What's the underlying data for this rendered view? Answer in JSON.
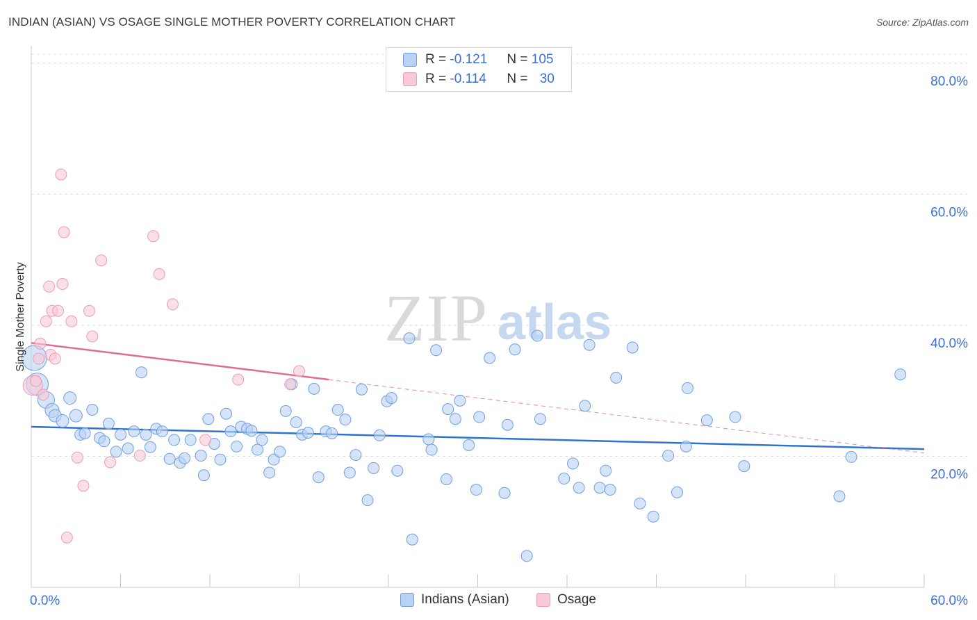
{
  "title": "INDIAN (ASIAN) VS OSAGE SINGLE MOTHER POVERTY CORRELATION CHART",
  "source": "Source: ZipAtlas.com",
  "watermark": {
    "zip": "ZIP",
    "atlas": "atlas"
  },
  "legend": {
    "series1": {
      "r_label": "R =",
      "r_value": "-0.121",
      "n_label": "N =",
      "n_value": "105"
    },
    "series2": {
      "r_label": "R =",
      "r_value": "-0.114",
      "n_label": "N =",
      "n_value": "30"
    }
  },
  "chart_data": {
    "type": "scatter",
    "title": "INDIAN (ASIAN) VS OSAGE SINGLE MOTHER POVERTY CORRELATION CHART",
    "xlabel": "",
    "ylabel": "Single Mother Poverty",
    "xlim": [
      0,
      60
    ],
    "ylim": [
      0,
      82
    ],
    "x_tick_labels": [
      "0.0%",
      "60.0%"
    ],
    "y_ticks": [
      20,
      40,
      60,
      80
    ],
    "y_tick_labels": [
      "20.0%",
      "40.0%",
      "60.0%",
      "80.0%"
    ],
    "series": [
      {
        "name": "Indians (Asian)",
        "color": "#6f9fe0",
        "fill": "#b9d2f3",
        "trend": {
          "x": [
            0,
            60
          ],
          "y": [
            24.5,
            21.1
          ],
          "color": "#2f73d0"
        },
        "points": [
          [
            0.2,
            35,
            18
          ],
          [
            0.4,
            31,
            16
          ],
          [
            1.0,
            28.6,
            12
          ],
          [
            1.4,
            27,
            10
          ],
          [
            1.6,
            26.2,
            9
          ],
          [
            2.1,
            25.4,
            9
          ],
          [
            2.6,
            28.9,
            9
          ],
          [
            3.0,
            26.2,
            9
          ],
          [
            3.3,
            23.3,
            8
          ],
          [
            3.6,
            23.5,
            8
          ],
          [
            4.1,
            27.1,
            8
          ],
          [
            4.6,
            22.8,
            8
          ],
          [
            4.9,
            22.3,
            8
          ],
          [
            5.2,
            25,
            8
          ],
          [
            5.7,
            20.7,
            8
          ],
          [
            6.0,
            23.3,
            8
          ],
          [
            6.5,
            21.2,
            8
          ],
          [
            6.9,
            23.8,
            8
          ],
          [
            7.4,
            32.8,
            8
          ],
          [
            7.7,
            23.3,
            8
          ],
          [
            8.0,
            21.4,
            8
          ],
          [
            8.4,
            24.2,
            8
          ],
          [
            8.8,
            23.8,
            8
          ],
          [
            9.3,
            19.6,
            8
          ],
          [
            9.6,
            22.5,
            8
          ],
          [
            10.0,
            19.0,
            8
          ],
          [
            10.3,
            19.7,
            8
          ],
          [
            10.7,
            22.5,
            8
          ],
          [
            11.4,
            20.1,
            8
          ],
          [
            11.6,
            17.1,
            8
          ],
          [
            11.9,
            25.7,
            8
          ],
          [
            12.3,
            21.9,
            8
          ],
          [
            12.7,
            19.5,
            8
          ],
          [
            13.1,
            26.5,
            8
          ],
          [
            13.4,
            23.8,
            8
          ],
          [
            13.8,
            21.5,
            8
          ],
          [
            14.1,
            24.5,
            8
          ],
          [
            14.5,
            24.2,
            8
          ],
          [
            14.8,
            23.9,
            8
          ],
          [
            15.2,
            21.0,
            8
          ],
          [
            15.5,
            22.5,
            8
          ],
          [
            16.0,
            17.5,
            8
          ],
          [
            16.3,
            19.5,
            8
          ],
          [
            16.7,
            20.7,
            8
          ],
          [
            17.1,
            26.9,
            8
          ],
          [
            17.5,
            31.0,
            8
          ],
          [
            17.8,
            25.2,
            8
          ],
          [
            18.2,
            23.3,
            8
          ],
          [
            18.6,
            23.6,
            8
          ],
          [
            19.0,
            30.3,
            8
          ],
          [
            19.3,
            16.8,
            8
          ],
          [
            19.8,
            23.8,
            8
          ],
          [
            20.2,
            23.5,
            8
          ],
          [
            20.6,
            27.1,
            8
          ],
          [
            21.1,
            25.6,
            8
          ],
          [
            21.4,
            17.5,
            8
          ],
          [
            21.8,
            20.2,
            8
          ],
          [
            22.2,
            30.2,
            8
          ],
          [
            22.6,
            13.3,
            8
          ],
          [
            23.0,
            18.2,
            8
          ],
          [
            23.4,
            23.2,
            8
          ],
          [
            23.9,
            28.4,
            8
          ],
          [
            24.2,
            28.9,
            8
          ],
          [
            24.6,
            17.8,
            8
          ],
          [
            25.4,
            38.0,
            8
          ],
          [
            25.6,
            7.3,
            8
          ],
          [
            26.7,
            22.6,
            8
          ],
          [
            26.9,
            21.0,
            8
          ],
          [
            27.2,
            36.2,
            8
          ],
          [
            27.9,
            16.5,
            8
          ],
          [
            28.0,
            27.2,
            8
          ],
          [
            28.5,
            25.7,
            8
          ],
          [
            28.8,
            28.5,
            8
          ],
          [
            29.4,
            21.7,
            8
          ],
          [
            29.9,
            14.9,
            8
          ],
          [
            30.1,
            26.0,
            8
          ],
          [
            30.8,
            35.0,
            8
          ],
          [
            31.8,
            14.4,
            8
          ],
          [
            32.0,
            24.8,
            8
          ],
          [
            32.5,
            36.3,
            8
          ],
          [
            33.3,
            4.8,
            8
          ],
          [
            34.0,
            38.4,
            8
          ],
          [
            34.2,
            25.7,
            8
          ],
          [
            35.8,
            16.6,
            8
          ],
          [
            36.4,
            18.9,
            8
          ],
          [
            36.8,
            15.2,
            8
          ],
          [
            37.2,
            27.7,
            8
          ],
          [
            37.5,
            37.0,
            8
          ],
          [
            38.2,
            15.2,
            8
          ],
          [
            38.6,
            17.8,
            8
          ],
          [
            38.9,
            14.9,
            8
          ],
          [
            39.3,
            32.0,
            8
          ],
          [
            40.4,
            36.6,
            8
          ],
          [
            40.9,
            12.8,
            8
          ],
          [
            41.8,
            10.8,
            8
          ],
          [
            42.8,
            20.1,
            8
          ],
          [
            43.4,
            14.5,
            8
          ],
          [
            44.0,
            21.5,
            8
          ],
          [
            44.1,
            30.4,
            8
          ],
          [
            45.4,
            25.5,
            8
          ],
          [
            47.3,
            26.0,
            8
          ],
          [
            47.9,
            18.5,
            8
          ],
          [
            54.3,
            13.9,
            8
          ],
          [
            55.1,
            19.9,
            8
          ],
          [
            58.4,
            32.5,
            8
          ]
        ]
      },
      {
        "name": "Osage",
        "color": "#ec9cb4",
        "fill": "#f8c9d7",
        "trend": {
          "x": [
            0,
            20
          ],
          "y": [
            37.3,
            31.7
          ],
          "dashed_extension_to": [
            60,
            20.5
          ],
          "color": "#e06b93"
        },
        "points": [
          [
            0.1,
            30.8,
            14
          ],
          [
            0.3,
            31.5,
            8
          ],
          [
            0.5,
            34.9,
            8
          ],
          [
            0.6,
            37.2,
            8
          ],
          [
            0.8,
            29.4,
            8
          ],
          [
            1.0,
            40.6,
            8
          ],
          [
            1.2,
            45.9,
            8
          ],
          [
            1.3,
            35.5,
            8
          ],
          [
            1.4,
            42.2,
            8
          ],
          [
            1.6,
            34.9,
            8
          ],
          [
            1.8,
            42.2,
            8
          ],
          [
            2.0,
            63.0,
            8
          ],
          [
            2.1,
            46.3,
            8
          ],
          [
            2.2,
            54.2,
            8
          ],
          [
            2.4,
            7.6,
            8
          ],
          [
            2.7,
            40.6,
            8
          ],
          [
            3.1,
            19.8,
            8
          ],
          [
            3.5,
            15.5,
            8
          ],
          [
            3.9,
            42.2,
            8
          ],
          [
            4.1,
            38.3,
            8
          ],
          [
            4.7,
            49.9,
            8
          ],
          [
            5.3,
            19.1,
            8
          ],
          [
            7.3,
            20.1,
            8
          ],
          [
            8.2,
            53.6,
            8
          ],
          [
            8.6,
            47.8,
            8
          ],
          [
            9.5,
            43.2,
            8
          ],
          [
            11.7,
            22.5,
            8
          ],
          [
            13.9,
            31.7,
            8
          ],
          [
            17.4,
            31.0,
            8
          ],
          [
            18.0,
            33.0,
            8
          ]
        ]
      }
    ]
  }
}
